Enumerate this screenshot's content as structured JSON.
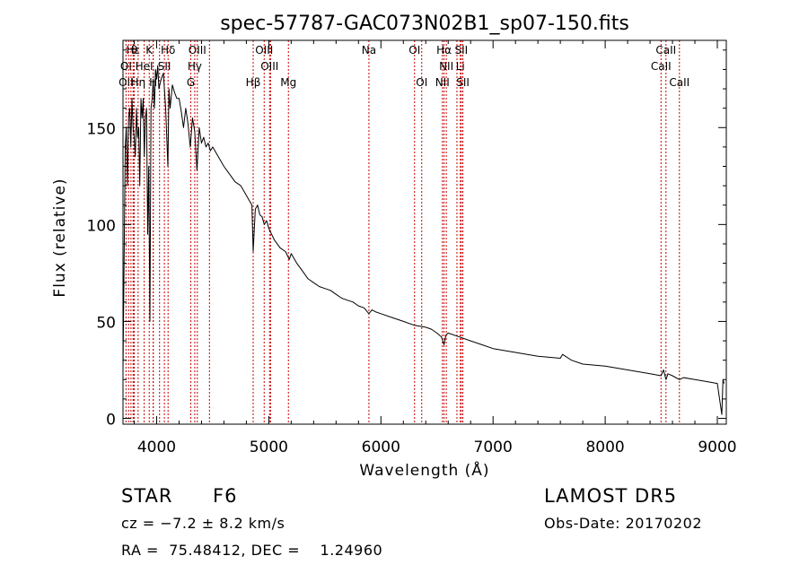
{
  "chart_data": {
    "type": "line",
    "title": "spec-57787-GAC073N02B1_sp07-150.fits",
    "xlabel": "Wavelength (Å)",
    "ylabel": "Flux (relative)",
    "xlim": [
      3700,
      9080
    ],
    "ylim": [
      -3,
      195
    ],
    "xticks": [
      4000,
      5000,
      6000,
      7000,
      8000,
      9000
    ],
    "yticks": [
      0,
      50,
      100,
      150
    ],
    "line_color": "#000000",
    "marker_color": "#cc0000",
    "series": [
      {
        "x": [
          3700,
          3710,
          3720,
          3730,
          3740,
          3750,
          3760,
          3770,
          3780,
          3790,
          3800,
          3810,
          3820,
          3830,
          3840,
          3850,
          3860,
          3870,
          3880,
          3890,
          3900,
          3910,
          3920,
          3930,
          3940,
          3950,
          3960,
          3970,
          3980,
          3990,
          4000,
          4010,
          4020,
          4040,
          4060,
          4080,
          4100,
          4110,
          4120,
          4140,
          4160,
          4180,
          4200,
          4220,
          4240,
          4260,
          4280,
          4300,
          4320,
          4340,
          4360,
          4380,
          4400,
          4420,
          4440,
          4460,
          4480,
          4500,
          4550,
          4600,
          4650,
          4700,
          4750,
          4800,
          4850,
          4861,
          4880,
          4900,
          4920,
          4940,
          4960,
          4980,
          5000,
          5050,
          5100,
          5150,
          5183,
          5200,
          5250,
          5300,
          5350,
          5400,
          5450,
          5500,
          5550,
          5600,
          5650,
          5700,
          5750,
          5800,
          5850,
          5893,
          5920,
          5950,
          6000,
          6100,
          6200,
          6300,
          6400,
          6450,
          6500,
          6540,
          6563,
          6580,
          6600,
          6700,
          6800,
          6900,
          7000,
          7200,
          7400,
          7600,
          7620,
          7700,
          7800,
          8000,
          8200,
          8400,
          8498,
          8520,
          8542,
          8560,
          8600,
          8662,
          8700,
          8800,
          8900,
          9000,
          9040,
          9050,
          9060
        ],
        "y": [
          25,
          80,
          140,
          150,
          120,
          155,
          160,
          140,
          165,
          150,
          145,
          135,
          160,
          145,
          150,
          120,
          165,
          155,
          165,
          135,
          155,
          160,
          95,
          130,
          50,
          160,
          165,
          175,
          160,
          180,
          175,
          182,
          170,
          175,
          178,
          160,
          130,
          170,
          160,
          172,
          168,
          165,
          165,
          158,
          150,
          160,
          152,
          140,
          155,
          148,
          128,
          150,
          142,
          145,
          140,
          142,
          138,
          140,
          135,
          130,
          126,
          122,
          120,
          115,
          110,
          86,
          108,
          110,
          105,
          104,
          100,
          102,
          98,
          92,
          88,
          86,
          82,
          85,
          80,
          76,
          72,
          70,
          68,
          67,
          66,
          64,
          62,
          61,
          60,
          58,
          57,
          54,
          56,
          55,
          54,
          52,
          50,
          48,
          47,
          46,
          44,
          42,
          38,
          43,
          44,
          42,
          40,
          38,
          36,
          34,
          32,
          31,
          33,
          30,
          28,
          27,
          25,
          23,
          22,
          25,
          20,
          23,
          22,
          20,
          21,
          20,
          19,
          18,
          2,
          20,
          18
        ]
      }
    ],
    "line_markers": [
      {
        "label": "Hε",
        "x": 3790,
        "row": 0
      },
      {
        "label": "θ",
        "x": 3800,
        "row": 0
      },
      {
        "label": "K",
        "x": 3934,
        "row": 0
      },
      {
        "label": "Hδ",
        "x": 4102,
        "row": 0
      },
      {
        "label": "OIII",
        "x": 4363,
        "row": 0
      },
      {
        "label": "OIII",
        "x": 4959,
        "row": 0
      },
      {
        "label": "OI",
        "x": 6300,
        "row": 0
      },
      {
        "label": "Hα",
        "x": 6563,
        "row": 0
      },
      {
        "label": "SII",
        "x": 6717,
        "row": 0
      },
      {
        "label": "CaII",
        "x": 8542,
        "row": 0
      },
      {
        "label": "OI",
        "x": 3727,
        "row": 1
      },
      {
        "label": "HeI",
        "x": 3889,
        "row": 1
      },
      {
        "label": "SII",
        "x": 4069,
        "row": 1
      },
      {
        "label": "Hγ",
        "x": 4340,
        "row": 1
      },
      {
        "label": "OIII",
        "x": 5007,
        "row": 1
      },
      {
        "label": "NII",
        "x": 6583,
        "row": 1
      },
      {
        "label": "Li",
        "x": 6708,
        "row": 1
      },
      {
        "label": "CaII",
        "x": 8498,
        "row": 1
      },
      {
        "label": "OII",
        "x": 3727,
        "row": 2
      },
      {
        "label": "Hη",
        "x": 3835,
        "row": 2
      },
      {
        "label": "H",
        "x": 3969,
        "row": 2
      },
      {
        "label": "G",
        "x": 4305,
        "row": 2
      },
      {
        "label": "Hβ",
        "x": 4861,
        "row": 2
      },
      {
        "label": "Mg",
        "x": 5175,
        "row": 2
      },
      {
        "label": "Na",
        "x": 5893,
        "row": 0
      },
      {
        "label": "OI",
        "x": 6364,
        "row": 2
      },
      {
        "label": "NII",
        "x": 6548,
        "row": 2
      },
      {
        "label": "SII",
        "x": 6731,
        "row": 2
      },
      {
        "label": "CaII",
        "x": 8662,
        "row": 2
      }
    ],
    "extra_marker_lines": [
      3750,
      3771,
      3798,
      3889,
      3970,
      4026,
      4471,
      5016,
      6678
    ],
    "grid": false,
    "legend": "none"
  },
  "info": {
    "object_class": "STAR",
    "subclass": "F6",
    "survey": "LAMOST DR5",
    "cz": "cz = −7.2 ± 8.2 km/s",
    "obs_date": "Obs-Date: 20170202",
    "coords": "RA =  75.48412, DEC =    1.24960"
  }
}
